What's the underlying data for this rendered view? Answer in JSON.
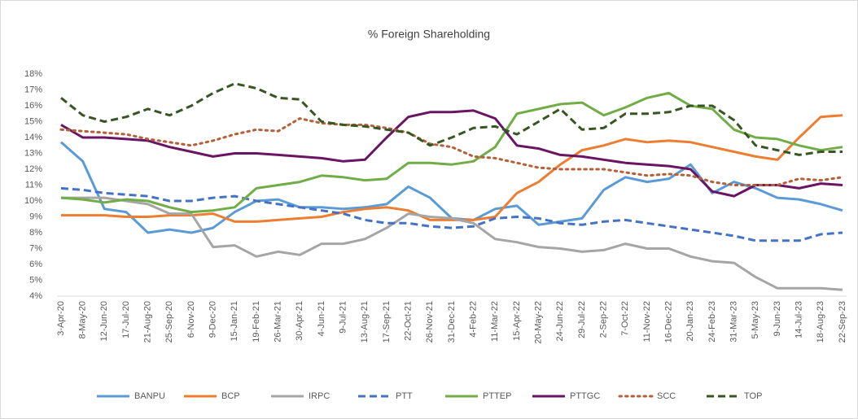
{
  "chart_data": {
    "type": "line",
    "title": "% Foreign  Shareholding",
    "categories": [
      "3-Apr-20",
      "8-May-20",
      "12-Jun-20",
      "17-Jul-20",
      "21-Aug-20",
      "25-Sep-20",
      "6-Nov-20",
      "9-Dec-20",
      "15-Jan-21",
      "19-Feb-21",
      "26-Mar-21",
      "30-Apr-21",
      "4-Jun-21",
      "9-Jul-21",
      "13-Aug-21",
      "17-Sep-21",
      "22-Oct-21",
      "26-Nov-21",
      "31-Dec-21",
      "4-Feb-22",
      "11-Mar-22",
      "15-Apr-22",
      "20-May-22",
      "24-Jun-22",
      "29-Jul-22",
      "2-Sep-22",
      "7-Oct-22",
      "11-Nov-22",
      "16-Dec-22",
      "20-Jan-23",
      "24-Feb-23",
      "31-Mar-23",
      "5-May-23",
      "9-Jun-23",
      "14-Jul-23",
      "18-Aug-23",
      "22-Sep-23"
    ],
    "ylim": [
      4,
      18
    ],
    "yticks": [
      {
        "value": 4,
        "label": "4%"
      },
      {
        "value": 5,
        "label": "5%"
      },
      {
        "value": 6,
        "label": "6%"
      },
      {
        "value": 7,
        "label": "7%"
      },
      {
        "value": 8,
        "label": "8%"
      },
      {
        "value": 9,
        "label": "9%"
      },
      {
        "value": 10,
        "label": "10%"
      },
      {
        "value": 11,
        "label": "11%"
      },
      {
        "value": 12,
        "label": "12%"
      },
      {
        "value": 13,
        "label": "13%"
      },
      {
        "value": 14,
        "label": "14%"
      },
      {
        "value": 15,
        "label": "15%"
      },
      {
        "value": 16,
        "label": "16%"
      },
      {
        "value": 17,
        "label": "17%"
      },
      {
        "value": 18,
        "label": "18%"
      }
    ],
    "legend": "bottom",
    "series": [
      {
        "name": "BANPU",
        "color": "#5b9bd5",
        "style": "solid",
        "values": [
          13.7,
          12.5,
          9.5,
          9.3,
          8.0,
          8.2,
          8.0,
          8.3,
          9.3,
          10.0,
          10.1,
          9.6,
          9.6,
          9.5,
          9.6,
          9.8,
          10.9,
          10.2,
          8.9,
          8.8,
          9.5,
          9.7,
          8.5,
          8.7,
          8.9,
          10.7,
          11.5,
          11.2,
          11.4,
          12.3,
          10.5,
          11.2,
          10.8,
          10.2,
          10.1,
          9.8,
          9.4
        ]
      },
      {
        "name": "BCP",
        "color": "#ed7d31",
        "style": "solid",
        "values": [
          9.1,
          9.1,
          9.1,
          9.0,
          9.0,
          9.1,
          9.1,
          9.2,
          8.7,
          8.7,
          8.8,
          8.9,
          9.0,
          9.3,
          9.5,
          9.6,
          9.4,
          8.8,
          8.8,
          8.8,
          9.0,
          10.5,
          11.2,
          12.3,
          13.2,
          13.5,
          13.9,
          13.7,
          13.8,
          13.7,
          13.4,
          13.1,
          12.8,
          12.6,
          14.0,
          15.3,
          15.4
        ]
      },
      {
        "name": "IRPC",
        "color": "#a5a5a5",
        "style": "solid",
        "values": [
          10.2,
          10.2,
          10.2,
          10.0,
          9.8,
          9.2,
          9.2,
          7.1,
          7.2,
          6.5,
          6.8,
          6.6,
          7.3,
          7.3,
          7.6,
          8.3,
          9.2,
          9.0,
          8.9,
          8.6,
          7.6,
          7.4,
          7.1,
          7.0,
          6.8,
          6.9,
          7.3,
          7.0,
          7.0,
          6.5,
          6.2,
          6.1,
          5.2,
          4.5,
          4.5,
          4.5,
          4.4
        ]
      },
      {
        "name": "PTT",
        "color": "#4472c4",
        "style": "dashed",
        "values": [
          10.8,
          10.7,
          10.5,
          10.4,
          10.3,
          10.0,
          10.0,
          10.2,
          10.3,
          10.0,
          9.8,
          9.6,
          9.4,
          9.2,
          8.8,
          8.6,
          8.6,
          8.4,
          8.3,
          8.4,
          8.9,
          9.0,
          8.9,
          8.6,
          8.5,
          8.7,
          8.8,
          8.6,
          8.4,
          8.2,
          8.0,
          7.8,
          7.5,
          7.5,
          7.5,
          7.9,
          8.0
        ]
      },
      {
        "name": "PTTEP",
        "color": "#70ad47",
        "style": "solid",
        "values": [
          10.2,
          10.1,
          9.9,
          10.1,
          10.0,
          9.6,
          9.3,
          9.4,
          9.6,
          10.8,
          11.0,
          11.2,
          11.6,
          11.5,
          11.3,
          11.4,
          12.4,
          12.4,
          12.3,
          12.5,
          13.4,
          15.5,
          15.8,
          16.1,
          16.2,
          15.4,
          15.9,
          16.5,
          16.8,
          16.0,
          15.8,
          14.5,
          14.0,
          13.9,
          13.5,
          13.2,
          13.4
        ]
      },
      {
        "name": "PTTGC",
        "color": "#6a1464",
        "style": "solid",
        "values": [
          14.8,
          14.0,
          14.0,
          13.9,
          13.8,
          13.4,
          13.1,
          12.8,
          13.0,
          13.0,
          12.9,
          12.8,
          12.7,
          12.5,
          12.6,
          14.0,
          15.3,
          15.6,
          15.6,
          15.7,
          15.2,
          13.5,
          13.3,
          12.9,
          12.8,
          12.6,
          12.4,
          12.3,
          12.2,
          12.0,
          10.6,
          10.3,
          11.0,
          11.0,
          10.8,
          11.1,
          11.0
        ]
      },
      {
        "name": "SCC",
        "color": "#b4613a",
        "style": "dotted",
        "values": [
          14.5,
          14.4,
          14.3,
          14.2,
          13.9,
          13.7,
          13.5,
          13.8,
          14.2,
          14.5,
          14.4,
          15.2,
          14.9,
          14.8,
          14.8,
          14.6,
          14.3,
          13.6,
          13.4,
          12.8,
          12.7,
          12.4,
          12.1,
          12.0,
          12.0,
          12.0,
          11.8,
          11.6,
          11.7,
          11.6,
          11.2,
          11.0,
          11.0,
          11.0,
          11.4,
          11.3,
          11.5
        ]
      },
      {
        "name": "TOP",
        "color": "#375623",
        "style": "dashed",
        "values": [
          16.5,
          15.4,
          15.0,
          15.3,
          15.8,
          15.4,
          16.0,
          16.8,
          17.4,
          17.1,
          16.5,
          16.4,
          15.0,
          14.8,
          14.7,
          14.5,
          14.3,
          13.5,
          14.0,
          14.6,
          14.7,
          14.2,
          15.0,
          15.8,
          14.5,
          14.6,
          15.5,
          15.5,
          15.6,
          16.0,
          16.0,
          15.1,
          13.5,
          13.2,
          12.9,
          13.1,
          13.1
        ]
      }
    ]
  }
}
